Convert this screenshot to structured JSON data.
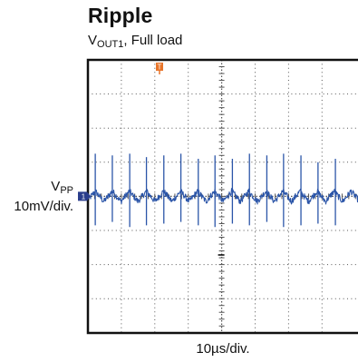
{
  "chart_data": {
    "type": "line",
    "title": "Ripple",
    "subtitle_main": "V",
    "subtitle_sub": "OUT1",
    "subtitle_rest": ", Full load",
    "ylabel_main": "V",
    "ylabel_sub": "PP",
    "ylabel_scale": "10mV/div.",
    "xlabel": "10µs/div.",
    "trigger_marker": "T",
    "channel_marker": "1",
    "colors": {
      "trace": "#2b55a8",
      "trigger": "#e8752a",
      "channel": "#2b3e8c",
      "grid": "#555555",
      "frame": "#111111"
    },
    "grid": {
      "x_divisions": 8,
      "y_divisions": 8
    },
    "series": [
      {
        "spike_x_div": [
          0.22,
          0.73,
          1.25,
          1.75,
          2.27,
          2.78,
          3.3,
          3.8,
          4.32,
          4.83,
          5.35,
          5.85,
          6.37,
          6.88,
          7.4
        ],
        "spike_peak_div": [
          1.25,
          1.2,
          1.25,
          1.15,
          1.2,
          1.25,
          1.1,
          1.2,
          1.1,
          1.25,
          1.2,
          1.25,
          1.2,
          1.0,
          1.1
        ],
        "spike_trough_div": [
          -0.85,
          -0.75,
          -0.9,
          -0.85,
          -0.8,
          -0.75,
          -0.85,
          -0.9,
          -0.8,
          -0.85,
          -0.75,
          -0.9,
          -0.85,
          -0.8,
          -0.85
        ],
        "ripple_amplitude_div": 0.3,
        "noise_div": 0.09
      }
    ]
  }
}
